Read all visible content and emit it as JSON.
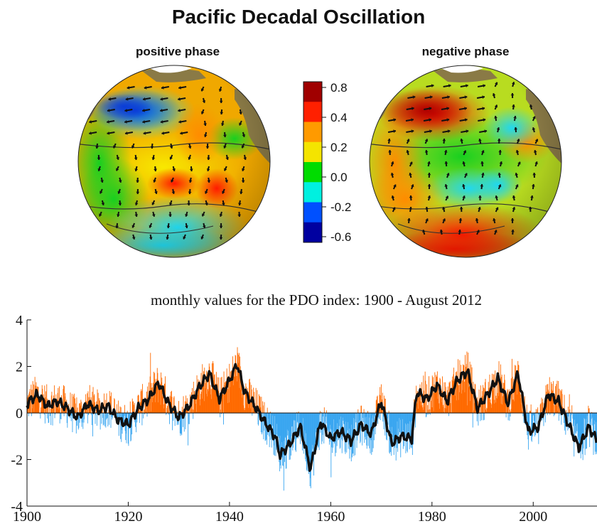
{
  "title": "Pacific Decadal Oscillation",
  "maps": [
    {
      "label": "positive phase"
    },
    {
      "label": "negative phase"
    }
  ],
  "colorbar": {
    "ticks": [
      "0.8",
      "0.4",
      "0.2",
      "0.0",
      "-0.2",
      "-0.6"
    ],
    "colors": [
      "#a00000",
      "#ff2000",
      "#ff9a00",
      "#f4e400",
      "#00dc00",
      "#00f0e0",
      "#0050ff",
      "#0000a0"
    ]
  },
  "chart_data": {
    "type": "bar",
    "title": "monthly values for the PDO index: 1900 - August 2012",
    "xlim": [
      1900,
      2012.6
    ],
    "ylim": [
      -4,
      4
    ],
    "xticks": [
      "1900",
      "1920",
      "1940",
      "1960",
      "1980",
      "2000"
    ],
    "yticks": [
      "4",
      "2",
      "0",
      "-2",
      "-4"
    ],
    "positive_color": "#ff6a00",
    "negative_color": "#3aa6f0",
    "smoothed_line_color": "#111111",
    "smoothed_series": {
      "x": [
        1900,
        1902,
        1904,
        1906,
        1908,
        1910,
        1912,
        1914,
        1916,
        1918,
        1920,
        1922,
        1924,
        1926,
        1928,
        1930,
        1932,
        1934,
        1936,
        1938,
        1940,
        1941.5,
        1943,
        1945,
        1947,
        1949,
        1950,
        1952,
        1954,
        1956,
        1958,
        1960,
        1962,
        1964,
        1966,
        1968,
        1970,
        1972,
        1974,
        1976,
        1977,
        1979,
        1981,
        1983,
        1985,
        1987,
        1989,
        1991,
        1993,
        1995,
        1997,
        1999,
        2001,
        2003,
        2005,
        2007,
        2009,
        2011,
        2012.6
      ],
      "y": [
        0.4,
        0.8,
        0.3,
        0.5,
        0.2,
        -0.2,
        0.4,
        0.1,
        0.3,
        -0.3,
        -0.5,
        0.2,
        0.6,
        1.3,
        0.4,
        -0.2,
        0.3,
        1.1,
        1.7,
        0.6,
        1.4,
        2.1,
        0.9,
        0.3,
        -0.4,
        -1.0,
        -1.8,
        -1.3,
        -0.6,
        -2.4,
        -0.4,
        -1.1,
        -0.8,
        -1.2,
        -0.5,
        -0.9,
        0.5,
        -1.3,
        -1.0,
        -1.1,
        0.9,
        0.6,
        1.2,
        0.5,
        1.4,
        1.8,
        0.2,
        0.8,
        1.5,
        0.4,
        1.7,
        -0.8,
        -0.6,
        0.8,
        0.5,
        -0.5,
        -1.5,
        -0.6,
        -1.2
      ]
    }
  }
}
